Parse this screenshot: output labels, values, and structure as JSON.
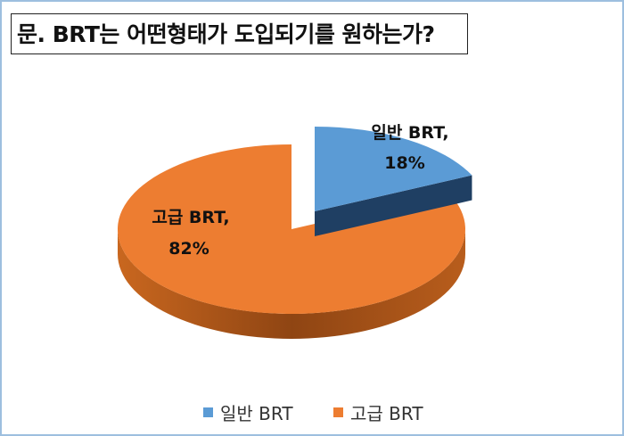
{
  "chart_data": {
    "type": "pie",
    "title": "문.  BRT는 어떤형태가 도입되기를 원하는가?",
    "categories": [
      "일반 BRT",
      "고급 BRT"
    ],
    "values": [
      18,
      82
    ],
    "data_labels": [
      [
        "일반 BRT,",
        "18%"
      ],
      [
        "고급 BRT,",
        "82%"
      ]
    ],
    "colors": [
      "#5b9bd5",
      "#ed7d31"
    ],
    "style": "3d-exploded",
    "legend": "bottom"
  }
}
